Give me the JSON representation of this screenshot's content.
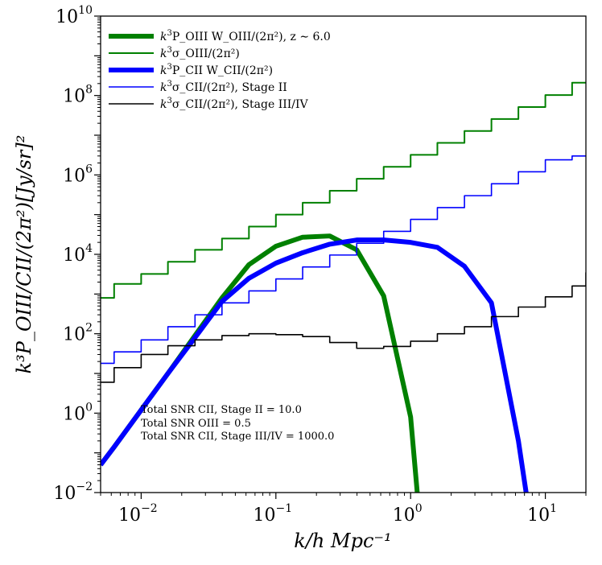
{
  "chart_data": {
    "type": "line",
    "title": "",
    "xlabel": "k/h Mpc⁻¹",
    "ylabel": "k³P_OIII/CII/(2π²)[Jy/sr]²",
    "xscale": "log",
    "yscale": "log",
    "xlim": [
      0.005,
      20
    ],
    "ylim": [
      0.01,
      10000000000
    ],
    "grid": false,
    "legend_position": "top-left",
    "x_ticks": [
      {
        "base": "10",
        "exp": "−2",
        "value": 0.01
      },
      {
        "base": "10",
        "exp": "−1",
        "value": 0.1
      },
      {
        "base": "10",
        "exp": "0",
        "value": 1
      },
      {
        "base": "10",
        "exp": "1",
        "value": 10
      }
    ],
    "y_ticks": [
      {
        "base": "10",
        "exp": "−2",
        "value": 0.01
      },
      {
        "base": "10",
        "exp": "0",
        "value": 1
      },
      {
        "base": "10",
        "exp": "2",
        "value": 100
      },
      {
        "base": "10",
        "exp": "4",
        "value": 10000
      },
      {
        "base": "10",
        "exp": "6",
        "value": 1000000
      },
      {
        "base": "10",
        "exp": "8",
        "value": 100000000
      },
      {
        "base": "10",
        "exp": "10",
        "value": 10000000000
      }
    ],
    "series": [
      {
        "name": "k³P_OIII W_OIII/(2π²), z ∼ 6.0",
        "legend_main": "k",
        "legend_rest": "P_OIII W_OIII/(2π²), z ∼ 6.0",
        "color": "#008000",
        "width": 6,
        "style": "line",
        "x": [
          0.005,
          0.0063,
          0.01,
          0.0158,
          0.0251,
          0.0398,
          0.0631,
          0.1,
          0.158,
          0.251,
          0.398,
          0.631,
          1.0,
          1.12
        ],
        "y": [
          0.05,
          0.14,
          1.2,
          10,
          90,
          800,
          5500,
          16000,
          27000,
          29000,
          13000,
          900,
          0.8,
          0.01
        ]
      },
      {
        "name": "k³σ_OIII/(2π²)",
        "legend_main": "k",
        "legend_rest": "σ_OIII/(2π²)",
        "color": "#008000",
        "width": 2,
        "style": "step",
        "x": [
          0.005,
          0.0063,
          0.01,
          0.0158,
          0.0251,
          0.0398,
          0.0631,
          0.1,
          0.158,
          0.251,
          0.398,
          0.631,
          1.0,
          1.58,
          2.51,
          3.98,
          6.31,
          10,
          15.8,
          20
        ],
        "y": [
          800,
          1800,
          3200,
          6500,
          13000,
          25000,
          50000,
          100000,
          200000,
          400000,
          800000,
          1600000,
          3200000,
          6400000,
          12800000,
          25600000,
          51200000,
          102400000,
          210000000,
          210000000
        ]
      },
      {
        "name": "k³P_CII W_CII/(2π²)",
        "legend_main": "k",
        "legend_rest": "P_CII W_CII/(2π²)",
        "color": "#0000ff",
        "width": 6,
        "style": "line",
        "x": [
          0.005,
          0.0063,
          0.01,
          0.0158,
          0.0251,
          0.0398,
          0.0631,
          0.1,
          0.158,
          0.251,
          0.398,
          0.631,
          1.0,
          1.58,
          2.51,
          3.98,
          6.31,
          7.2
        ],
        "y": [
          0.05,
          0.14,
          1.2,
          10,
          80,
          650,
          2500,
          6000,
          11000,
          18000,
          23000,
          23000,
          20000,
          15000,
          5000,
          600,
          0.2,
          0.01
        ]
      },
      {
        "name": "k³σ_CII/(2π²), Stage II",
        "legend_main": "k",
        "legend_rest": "σ_CII/(2π²), Stage II",
        "color": "#0000ff",
        "width": 1.6,
        "style": "step",
        "x": [
          0.005,
          0.0063,
          0.01,
          0.0158,
          0.0251,
          0.0398,
          0.0631,
          0.1,
          0.158,
          0.251,
          0.398,
          0.631,
          1.0,
          1.58,
          2.51,
          3.98,
          6.31,
          10,
          15.8,
          20
        ],
        "y": [
          18,
          35,
          70,
          150,
          300,
          600,
          1200,
          2400,
          4800,
          9600,
          19000,
          38000,
          76000,
          150000,
          300000,
          600000,
          1200000,
          2400000,
          3000000,
          3000000
        ]
      },
      {
        "name": "k³σ_CII/(2π²), Stage III/IV",
        "legend_main": "k",
        "legend_rest": "σ_CII/(2π²), Stage III/IV",
        "color": "#000000",
        "width": 1.6,
        "style": "step",
        "x": [
          0.005,
          0.0063,
          0.01,
          0.0158,
          0.0251,
          0.0398,
          0.0631,
          0.1,
          0.158,
          0.251,
          0.398,
          0.631,
          1.0,
          1.58,
          2.51,
          3.98,
          6.31,
          10,
          15.8,
          20
        ],
        "y": [
          6,
          14,
          30,
          50,
          70,
          90,
          100,
          95,
          85,
          60,
          43,
          48,
          65,
          100,
          150,
          270,
          470,
          850,
          1600,
          3500
        ]
      }
    ],
    "annotations": [
      "Total SNR CII, Stage II = 10.0",
      "Total SNR OIII = 0.5",
      "Total SNR CII, Stage III/IV = 1000.0"
    ]
  }
}
